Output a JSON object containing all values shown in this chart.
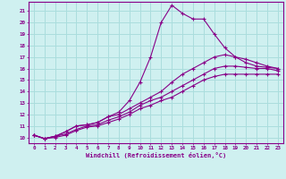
{
  "xlabel": "Windchill (Refroidissement éolien,°C)",
  "bg_color": "#cff0f0",
  "line_color": "#880088",
  "grid_color": "#aadddd",
  "xlim": [
    -0.5,
    23.5
  ],
  "ylim": [
    9.5,
    21.8
  ],
  "xticks": [
    0,
    1,
    2,
    3,
    4,
    5,
    6,
    7,
    8,
    9,
    10,
    11,
    12,
    13,
    14,
    15,
    16,
    17,
    18,
    19,
    20,
    21,
    22,
    23
  ],
  "yticks": [
    10,
    11,
    12,
    13,
    14,
    15,
    16,
    17,
    18,
    19,
    20,
    21
  ],
  "series": [
    {
      "x": [
        0,
        1,
        2,
        3,
        4,
        5,
        6,
        7,
        8,
        9,
        10,
        11,
        12,
        13,
        14,
        15,
        16,
        17,
        18,
        19,
        20,
        21,
        22,
        23
      ],
      "y": [
        10.2,
        9.9,
        10.1,
        10.5,
        11.0,
        11.1,
        11.3,
        11.8,
        12.2,
        13.2,
        14.8,
        17.0,
        20.0,
        21.5,
        20.8,
        20.3,
        20.3,
        19.0,
        17.8,
        17.0,
        16.5,
        16.2,
        16.1,
        16.0
      ]
    },
    {
      "x": [
        0,
        1,
        2,
        3,
        4,
        5,
        6,
        7,
        8,
        9,
        10,
        11,
        12,
        13,
        14,
        15,
        16,
        17,
        18,
        19,
        20,
        21,
        22,
        23
      ],
      "y": [
        10.2,
        9.9,
        10.1,
        10.5,
        11.0,
        11.1,
        11.3,
        11.8,
        12.0,
        12.5,
        13.0,
        13.5,
        14.0,
        14.8,
        15.5,
        16.0,
        16.5,
        17.0,
        17.2,
        17.0,
        16.8,
        16.5,
        16.2,
        16.0
      ]
    },
    {
      "x": [
        0,
        1,
        2,
        3,
        4,
        5,
        6,
        7,
        8,
        9,
        10,
        11,
        12,
        13,
        14,
        15,
        16,
        17,
        18,
        19,
        20,
        21,
        22,
        23
      ],
      "y": [
        10.2,
        9.9,
        10.1,
        10.3,
        10.7,
        11.0,
        11.1,
        11.5,
        11.8,
        12.2,
        12.8,
        13.2,
        13.5,
        14.0,
        14.5,
        15.0,
        15.5,
        16.0,
        16.2,
        16.2,
        16.1,
        16.0,
        16.0,
        15.8
      ]
    },
    {
      "x": [
        0,
        1,
        2,
        3,
        4,
        5,
        6,
        7,
        8,
        9,
        10,
        11,
        12,
        13,
        14,
        15,
        16,
        17,
        18,
        19,
        20,
        21,
        22,
        23
      ],
      "y": [
        10.2,
        9.9,
        10.0,
        10.2,
        10.6,
        10.9,
        11.0,
        11.3,
        11.6,
        12.0,
        12.5,
        12.8,
        13.2,
        13.5,
        14.0,
        14.5,
        15.0,
        15.3,
        15.5,
        15.5,
        15.5,
        15.5,
        15.5,
        15.5
      ]
    }
  ]
}
